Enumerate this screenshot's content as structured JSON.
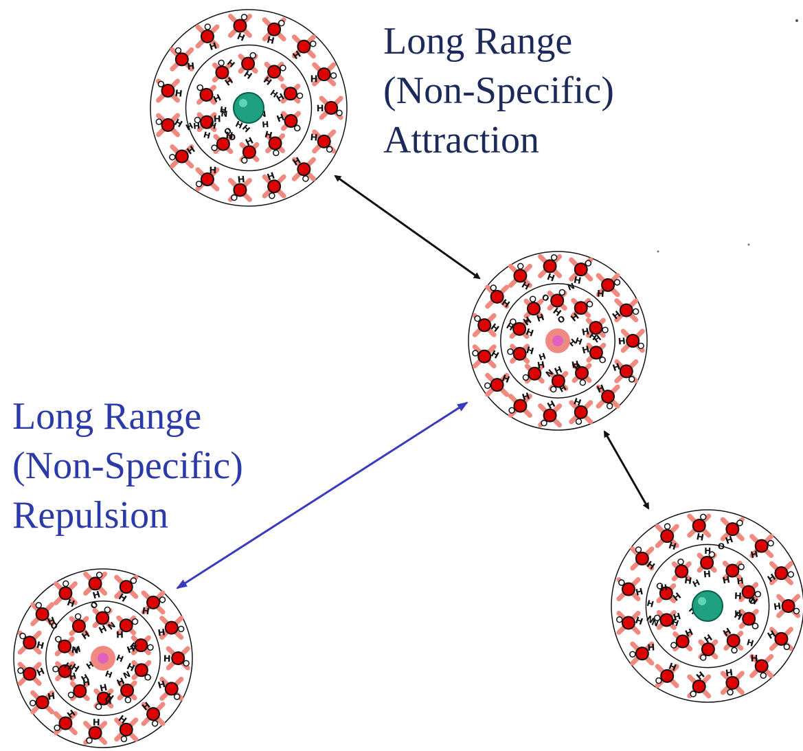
{
  "labels": {
    "attraction": {
      "lines": [
        "Long Range",
        "(Non-Specific)",
        "Attraction"
      ],
      "color": "#1b2a5a"
    },
    "repulsion": {
      "lines": [
        "Long Range",
        "(Non-Specific)",
        "Repulsion"
      ],
      "color": "#2b3aa8"
    }
  },
  "atom_labels": {
    "hydrogen": "H",
    "oxygen": "O",
    "nitrogen": "N"
  },
  "colors": {
    "attraction_arrow": "#111111",
    "repulsion_arrow": "#3a3ac0",
    "oxygen": "#dd0000",
    "bond_glow": "#f08a80",
    "core_green": "#1fa080",
    "core_pink": "#e060c0"
  },
  "clusters": [
    {
      "id": "cluster-top-left",
      "core": "green"
    },
    {
      "id": "cluster-center",
      "core": "pink"
    },
    {
      "id": "cluster-bottom-right",
      "core": "green"
    },
    {
      "id": "cluster-bottom-left",
      "core": "pink"
    }
  ]
}
